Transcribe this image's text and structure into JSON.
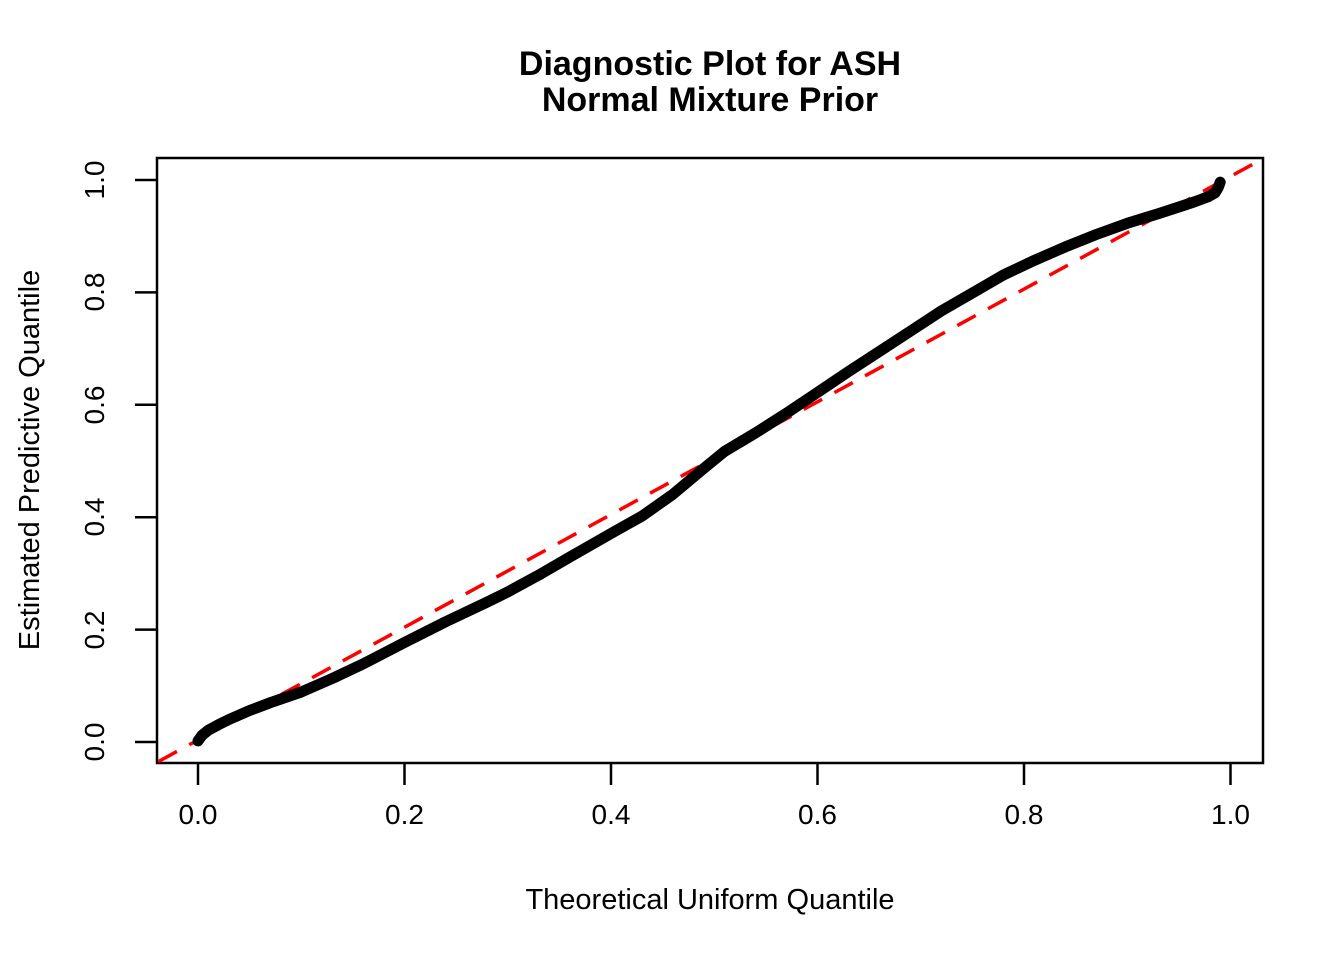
{
  "title": {
    "line1": "Diagnostic Plot for ASH",
    "line2": "Normal Mixture Prior"
  },
  "colors": {
    "background": "#FFFFFF",
    "foreground": "#000000",
    "curve": "#000000",
    "reference_line": "#FF0000"
  },
  "chart_data": {
    "type": "line",
    "title": "Diagnostic Plot for ASH",
    "subtitle": "Normal Mixture Prior",
    "xlabel": "Theoretical Uniform Quantile",
    "ylabel": "Estimated Predictive Quantile",
    "xlim": [
      -0.04,
      1.04
    ],
    "ylim": [
      -0.04,
      1.04
    ],
    "grid": false,
    "legend": null,
    "x_ticks": {
      "values": [
        0.0,
        0.2,
        0.4,
        0.6,
        0.8,
        1.0
      ],
      "labels": [
        "0.0",
        "0.2",
        "0.4",
        "0.6",
        "0.8",
        "1.0"
      ]
    },
    "y_ticks": {
      "values": [
        0.0,
        0.2,
        0.4,
        0.6,
        0.8,
        1.0
      ],
      "labels": [
        "0.0",
        "0.2",
        "0.4",
        "0.6",
        "0.8",
        "1.0"
      ]
    },
    "series": [
      {
        "name": "estimated-predictive-quantile-curve",
        "color": "#000000",
        "style": "solid-thick",
        "points": [
          [
            0.0,
            0.002
          ],
          [
            0.004,
            0.012
          ],
          [
            0.01,
            0.021
          ],
          [
            0.02,
            0.031
          ],
          [
            0.03,
            0.04
          ],
          [
            0.05,
            0.056
          ],
          [
            0.07,
            0.07
          ],
          [
            0.1,
            0.089
          ],
          [
            0.13,
            0.113
          ],
          [
            0.16,
            0.139
          ],
          [
            0.2,
            0.177
          ],
          [
            0.24,
            0.214
          ],
          [
            0.28,
            0.249
          ],
          [
            0.3,
            0.267
          ],
          [
            0.33,
            0.297
          ],
          [
            0.36,
            0.329
          ],
          [
            0.4,
            0.371
          ],
          [
            0.43,
            0.402
          ],
          [
            0.46,
            0.441
          ],
          [
            0.49,
            0.487
          ],
          [
            0.51,
            0.517
          ],
          [
            0.54,
            0.55
          ],
          [
            0.57,
            0.585
          ],
          [
            0.6,
            0.622
          ],
          [
            0.63,
            0.659
          ],
          [
            0.66,
            0.695
          ],
          [
            0.69,
            0.731
          ],
          [
            0.72,
            0.767
          ],
          [
            0.75,
            0.799
          ],
          [
            0.78,
            0.831
          ],
          [
            0.81,
            0.857
          ],
          [
            0.84,
            0.881
          ],
          [
            0.87,
            0.903
          ],
          [
            0.9,
            0.923
          ],
          [
            0.93,
            0.94
          ],
          [
            0.95,
            0.952
          ],
          [
            0.965,
            0.961
          ],
          [
            0.978,
            0.97
          ],
          [
            0.985,
            0.977
          ],
          [
            0.988,
            0.986
          ],
          [
            0.99,
            0.996
          ]
        ]
      },
      {
        "name": "identity-reference-line",
        "color": "#FF0000",
        "style": "dashed",
        "points": [
          [
            -0.04,
            -0.04
          ],
          [
            1.04,
            1.04
          ]
        ]
      }
    ]
  }
}
